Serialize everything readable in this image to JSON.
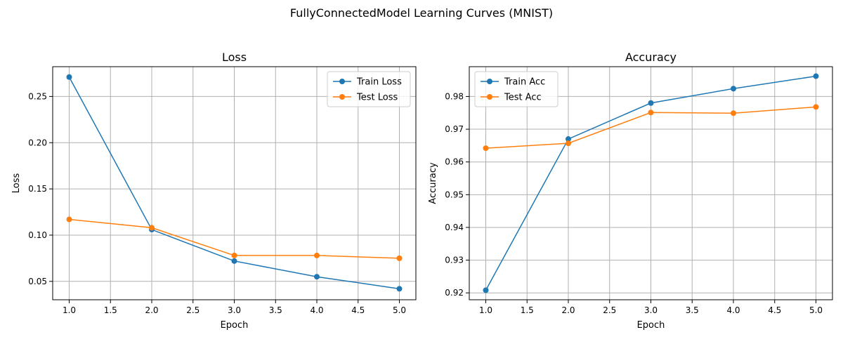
{
  "suptitle": "FullyConnectedModel Learning Curves (MNIST)",
  "chart_data": [
    {
      "type": "line",
      "title": "Loss",
      "xlabel": "Epoch",
      "ylabel": "Loss",
      "x": [
        1,
        2,
        3,
        4,
        5
      ],
      "xlim": [
        0.8,
        5.2
      ],
      "ylim": [
        0.0301,
        0.2822
      ],
      "xticks": [
        1.0,
        1.5,
        2.0,
        2.5,
        3.0,
        3.5,
        4.0,
        4.5,
        5.0
      ],
      "xtick_labels": [
        "1.0",
        "1.5",
        "2.0",
        "2.5",
        "3.0",
        "3.5",
        "4.0",
        "4.5",
        "5.0"
      ],
      "yticks": [
        0.05,
        0.1,
        0.15,
        0.2,
        0.25
      ],
      "ytick_labels": [
        "0.05",
        "0.10",
        "0.15",
        "0.20",
        "0.25"
      ],
      "grid": true,
      "legend_position": "top-right",
      "series": [
        {
          "name": "Train Loss",
          "color": "#1f77b4",
          "marker": "circle",
          "values": [
            0.271,
            0.106,
            0.072,
            0.055,
            0.042
          ]
        },
        {
          "name": "Test Loss",
          "color": "#ff7f0e",
          "marker": "circle",
          "values": [
            0.117,
            0.108,
            0.078,
            0.078,
            0.075
          ]
        }
      ]
    },
    {
      "type": "line",
      "title": "Accuracy",
      "xlabel": "Epoch",
      "ylabel": "Accuracy",
      "x": [
        1,
        2,
        3,
        4,
        5
      ],
      "xlim": [
        0.8,
        5.2
      ],
      "ylim": [
        0.9179,
        0.9891
      ],
      "xticks": [
        1.0,
        1.5,
        2.0,
        2.5,
        3.0,
        3.5,
        4.0,
        4.5,
        5.0
      ],
      "xtick_labels": [
        "1.0",
        "1.5",
        "2.0",
        "2.5",
        "3.0",
        "3.5",
        "4.0",
        "4.5",
        "5.0"
      ],
      "yticks": [
        0.92,
        0.93,
        0.94,
        0.95,
        0.96,
        0.97,
        0.98
      ],
      "ytick_labels": [
        "0.92",
        "0.93",
        "0.94",
        "0.95",
        "0.96",
        "0.97",
        "0.98"
      ],
      "grid": true,
      "legend_position": "top-left",
      "series": [
        {
          "name": "Train Acc",
          "color": "#1f77b4",
          "marker": "circle",
          "values": [
            0.9208,
            0.967,
            0.978,
            0.9824,
            0.9862
          ]
        },
        {
          "name": "Test Acc",
          "color": "#ff7f0e",
          "marker": "circle",
          "values": [
            0.9642,
            0.9657,
            0.9751,
            0.9749,
            0.9768
          ]
        }
      ]
    }
  ]
}
